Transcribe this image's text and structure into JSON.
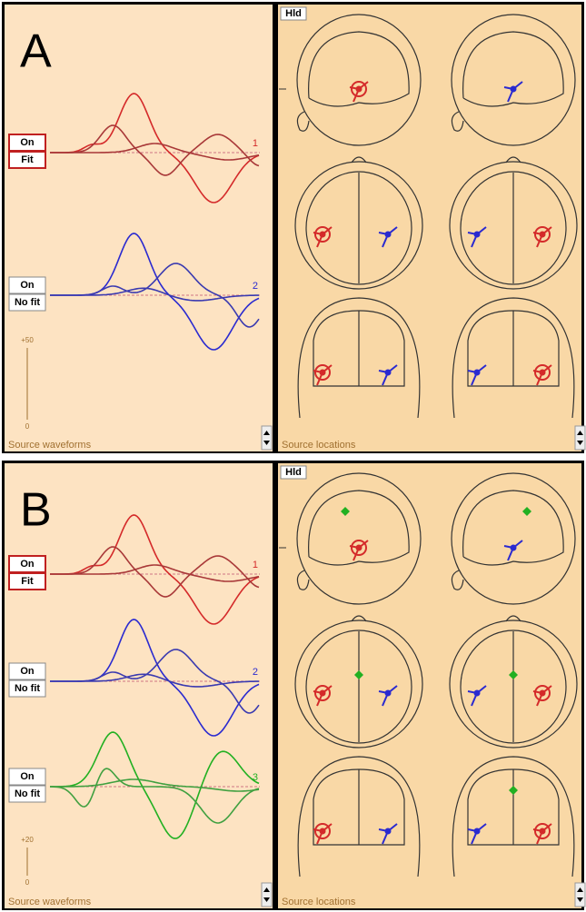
{
  "panels": [
    {
      "label": "A",
      "waveforms": {
        "title": "Source waveforms",
        "scale": {
          "top": "+50",
          "bottom": "0"
        },
        "sources": [
          {
            "state": "On",
            "fit": "Fit",
            "number": "1"
          },
          {
            "state": "On",
            "fit": "No fit",
            "number": "2"
          }
        ]
      },
      "locations": {
        "title": "Source locations",
        "button": "Hld"
      }
    },
    {
      "label": "B",
      "waveforms": {
        "title": "Source waveforms",
        "scale": {
          "top": "+20",
          "bottom": "0"
        },
        "sources": [
          {
            "state": "On",
            "fit": "Fit",
            "number": "1"
          },
          {
            "state": "On",
            "fit": "No fit",
            "number": "2"
          },
          {
            "state": "On",
            "fit": "No fit",
            "number": "3"
          }
        ]
      },
      "locations": {
        "title": "Source locations",
        "button": "Hld"
      }
    }
  ]
}
